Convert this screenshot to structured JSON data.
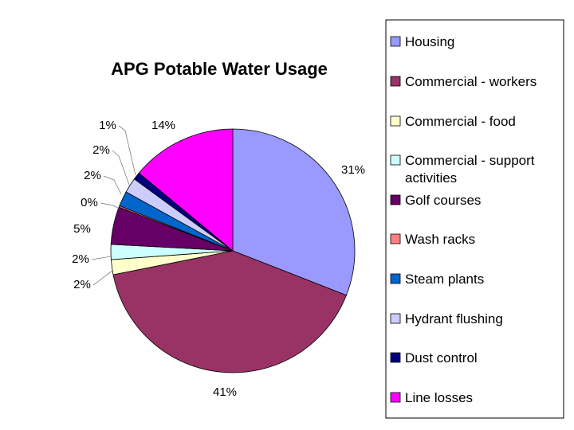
{
  "chart_data": {
    "type": "pie",
    "title": "APG Potable Water Usage",
    "start_angle_deg": 0,
    "direction": "clockwise",
    "legend_position": "right",
    "slices": [
      {
        "name": "Housing",
        "value": 31,
        "label": "31%",
        "color": "#9999FF"
      },
      {
        "name": "Commercial - workers",
        "value": 41,
        "label": "41%",
        "color": "#993366"
      },
      {
        "name": "Commercial - food",
        "value": 2,
        "label": "2%",
        "color": "#FFFFCC"
      },
      {
        "name": "Commercial - support activities",
        "value": 2,
        "label": "2%",
        "color": "#CCFFFF"
      },
      {
        "name": "Golf courses",
        "value": 5,
        "label": "5%",
        "color": "#660066"
      },
      {
        "name": "Wash racks",
        "value": 0.2,
        "label": "0%",
        "color": "#FF8080"
      },
      {
        "name": "Steam plants",
        "value": 2,
        "label": "2%",
        "color": "#0066CC"
      },
      {
        "name": "Hydrant flushing",
        "value": 2,
        "label": "2%",
        "color": "#CCCCFF"
      },
      {
        "name": "Dust control",
        "value": 1,
        "label": "1%",
        "color": "#000080"
      },
      {
        "name": "Line losses",
        "value": 14,
        "label": "14%",
        "color": "#FF00FF"
      }
    ],
    "legend": [
      {
        "text": [
          "Housing"
        ]
      },
      {
        "text": [
          "Commercial - workers"
        ]
      },
      {
        "text": [
          "Commercial - food"
        ]
      },
      {
        "text": [
          "Commercial - support",
          "activities"
        ]
      },
      {
        "text": [
          "Golf courses"
        ]
      },
      {
        "text": [
          "Wash racks"
        ]
      },
      {
        "text": [
          "Steam plants"
        ]
      },
      {
        "text": [
          "Hydrant flushing"
        ]
      },
      {
        "text": [
          "Dust control"
        ]
      },
      {
        "text": [
          "Line losses"
        ]
      }
    ]
  }
}
